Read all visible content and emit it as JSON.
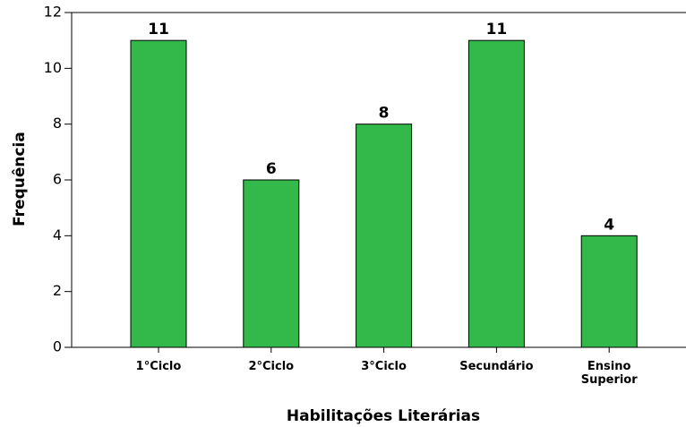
{
  "chart_data": {
    "type": "bar",
    "x_label": "Habilitações Literárias",
    "y_label": "Frequência",
    "categories": [
      "1°Ciclo",
      "2°Ciclo",
      "3°Ciclo",
      "Secundário",
      "Ensino Superior"
    ],
    "values": [
      11,
      6,
      8,
      11,
      4
    ],
    "color": "#33b84a",
    "ylim": [
      0,
      12
    ],
    "yticks": [
      0,
      2,
      4,
      6,
      8,
      10,
      12
    ],
    "grid": false
  }
}
